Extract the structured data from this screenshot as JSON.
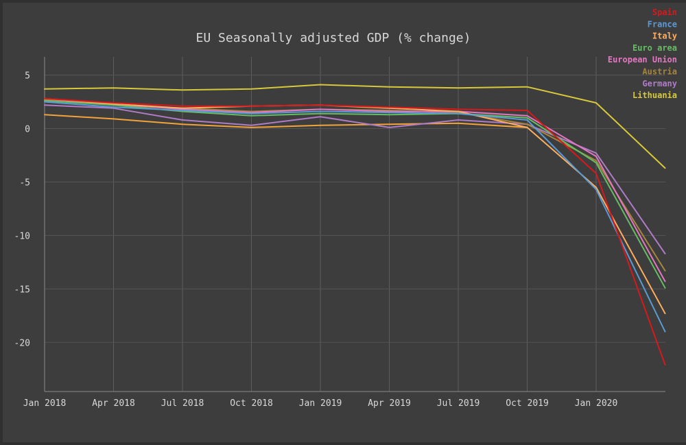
{
  "chart_data": {
    "type": "line",
    "title": "EU Seasonally adjusted GDP (% change)",
    "xlabel": "",
    "ylabel": "",
    "x": [
      "2018-Q1",
      "2018-Q2",
      "2018-Q3",
      "2018-Q4",
      "2019-Q1",
      "2019-Q2",
      "2019-Q3",
      "2019-Q4",
      "2020-Q1",
      "2020-Q2"
    ],
    "x_tick_labels": [
      "Jan 2018",
      "Apr 2018",
      "Jul 2018",
      "Oct 2018",
      "Jan 2019",
      "Apr 2019",
      "Jul 2019",
      "Oct 2019",
      "Jan 2020"
    ],
    "y_ticks": [
      5,
      0,
      -5,
      -10,
      -15,
      -20
    ],
    "ylim": [
      -24.6,
      6.7
    ],
    "grid": true,
    "legend_position": "top-right",
    "series": [
      {
        "name": "Spain",
        "color": "#d7191c",
        "values": [
          2.8,
          2.4,
          2.1,
          2.1,
          2.2,
          2.0,
          1.8,
          1.7,
          -4.2,
          -22.1
        ]
      },
      {
        "name": "France",
        "color": "#5b9bd5",
        "values": [
          2.5,
          2.0,
          1.7,
          1.4,
          1.6,
          1.5,
          1.4,
          0.8,
          -5.7,
          -19.0
        ]
      },
      {
        "name": "Italy",
        "color": "#fdae61",
        "values": [
          2.8,
          2.3,
          1.9,
          2.1,
          2.2,
          1.9,
          1.6,
          0.1,
          -5.5,
          -17.3
        ]
      },
      {
        "name": "Euro area",
        "color": "#66bd63",
        "values": [
          2.6,
          2.2,
          1.6,
          1.2,
          1.4,
          1.3,
          1.4,
          1.0,
          -3.2,
          -14.9
        ]
      },
      {
        "name": "European Union",
        "color": "#e377c2",
        "values": [
          2.6,
          2.3,
          1.8,
          1.5,
          1.8,
          1.6,
          1.6,
          1.2,
          -2.6,
          -14.3
        ]
      },
      {
        "name": "Austria",
        "color": "#a6853c",
        "values": [
          2.7,
          2.2,
          1.9,
          1.6,
          1.8,
          1.7,
          1.5,
          0.4,
          -3.0,
          -13.3
        ]
      },
      {
        "name": "Germany",
        "color": "#b07cc6",
        "values": [
          2.2,
          1.9,
          0.8,
          0.3,
          1.1,
          0.1,
          0.8,
          0.4,
          -2.3,
          -11.7
        ]
      },
      {
        "name": "Lithuania",
        "color": "#d8c93b",
        "values": [
          3.7,
          3.8,
          3.6,
          3.7,
          4.1,
          3.9,
          3.8,
          3.9,
          2.4,
          -3.7
        ]
      }
    ],
    "extra_series": [
      {
        "color": "#f2a33a",
        "values": [
          1.3,
          0.9,
          0.4,
          0.1,
          0.3,
          0.4,
          0.5,
          0.1,
          null,
          null
        ]
      }
    ]
  }
}
